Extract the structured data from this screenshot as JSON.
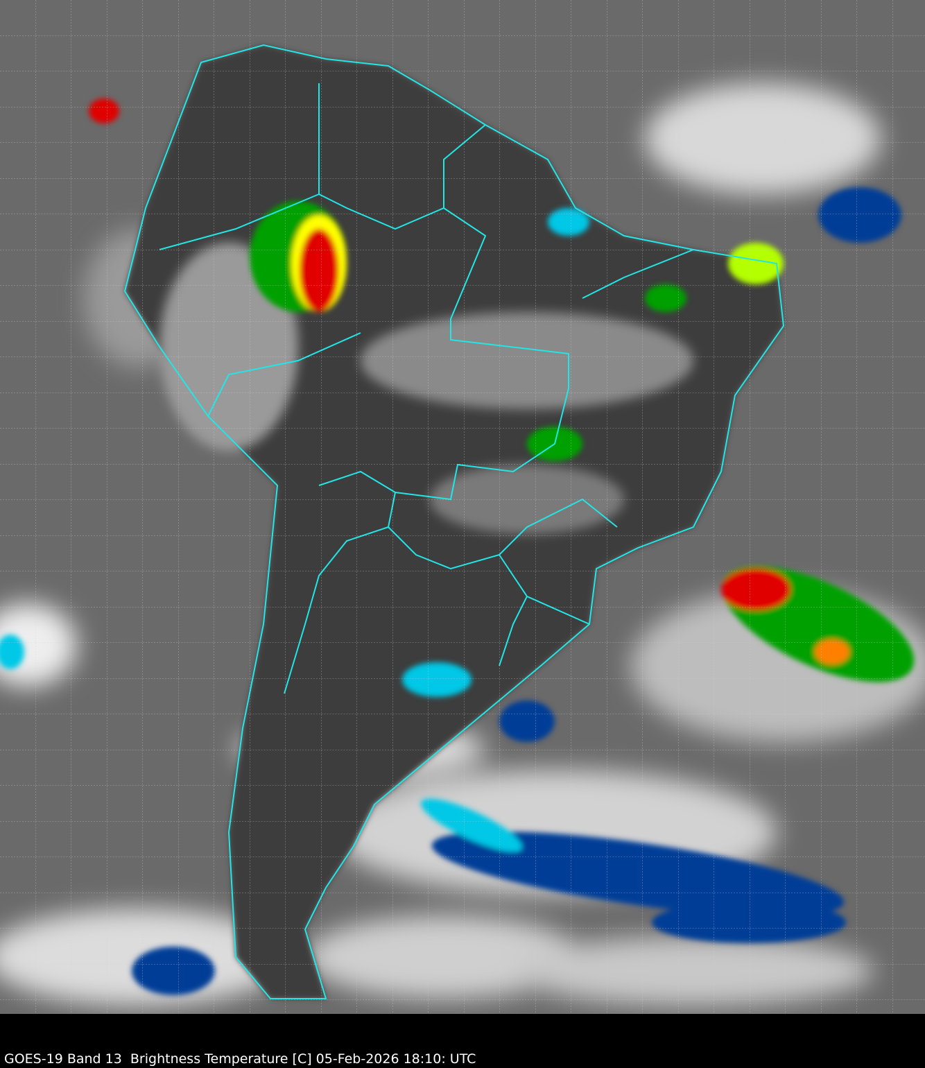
{
  "caption": "GOES-19 Band 13  Brightness Temperature [C] 05-Feb-2026 18:10: UTC",
  "colors": {
    "border": "#22e6e6",
    "grid": "#cfcfcf",
    "background": "#000000",
    "ocean_cloud_gray": "#6e6e6e",
    "land_gray": "#3c3c3c",
    "cold_cloud_scale": [
      "#00c8e6",
      "#003c96",
      "#00a000",
      "#b4ff00",
      "#ffff00",
      "#ff8000",
      "#e00000",
      "#ff96ff"
    ]
  }
}
